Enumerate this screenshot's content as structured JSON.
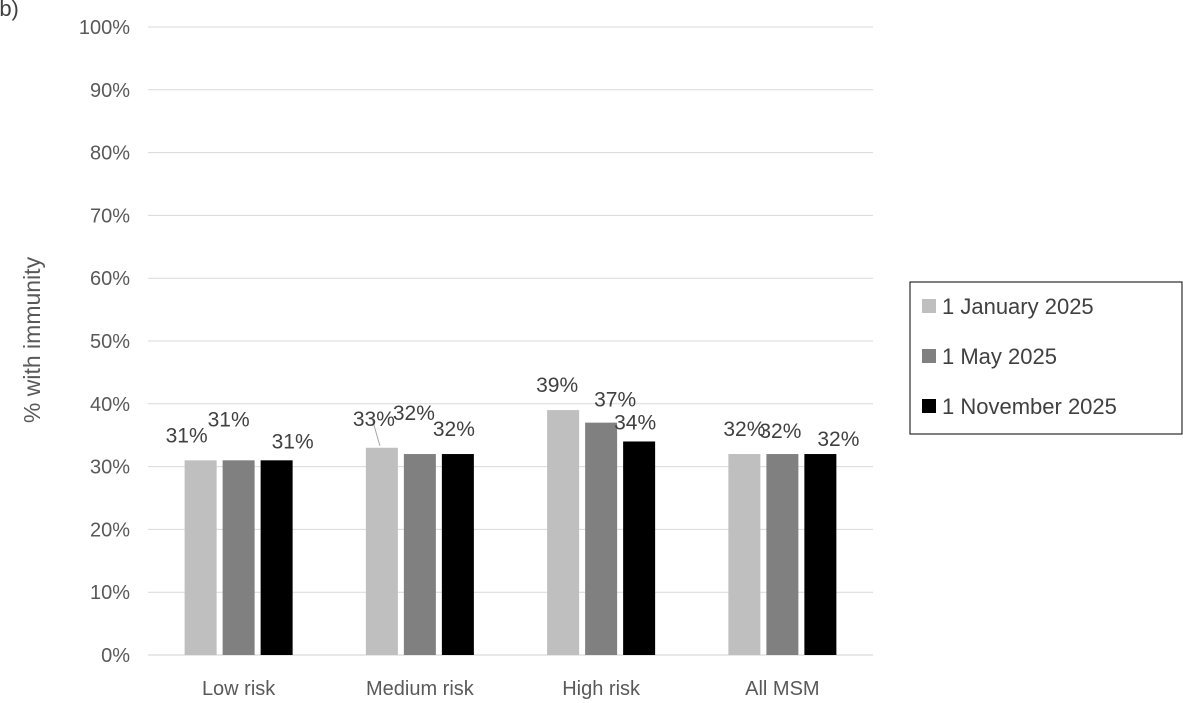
{
  "chart_data": {
    "type": "bar",
    "panel_label": "(b)",
    "categories": [
      "Low risk",
      "Medium risk",
      "High risk",
      "All MSM"
    ],
    "series": [
      {
        "name": "1 January 2025",
        "color": "#bfbfbf",
        "values": [
          31,
          33,
          39,
          32
        ],
        "labels": [
          "31%",
          "33%",
          "39%",
          "32%"
        ]
      },
      {
        "name": "1 May 2025",
        "color": "#808080",
        "values": [
          31,
          32,
          37,
          32
        ],
        "labels": [
          "31%",
          "32%",
          "37%",
          "32%"
        ]
      },
      {
        "name": "1 November 2025",
        "color": "#000000",
        "values": [
          31,
          32,
          34,
          32
        ],
        "labels": [
          "31%",
          "32%",
          "34%",
          "32%"
        ]
      }
    ],
    "ylabel": "% with immunity",
    "xlabel": "",
    "ylim": [
      0,
      100
    ],
    "yticks": [
      "0%",
      "10%",
      "20%",
      "30%",
      "40%",
      "50%",
      "60%",
      "70%",
      "80%",
      "90%",
      "100%"
    ],
    "grid": true,
    "legend_position": "right"
  }
}
